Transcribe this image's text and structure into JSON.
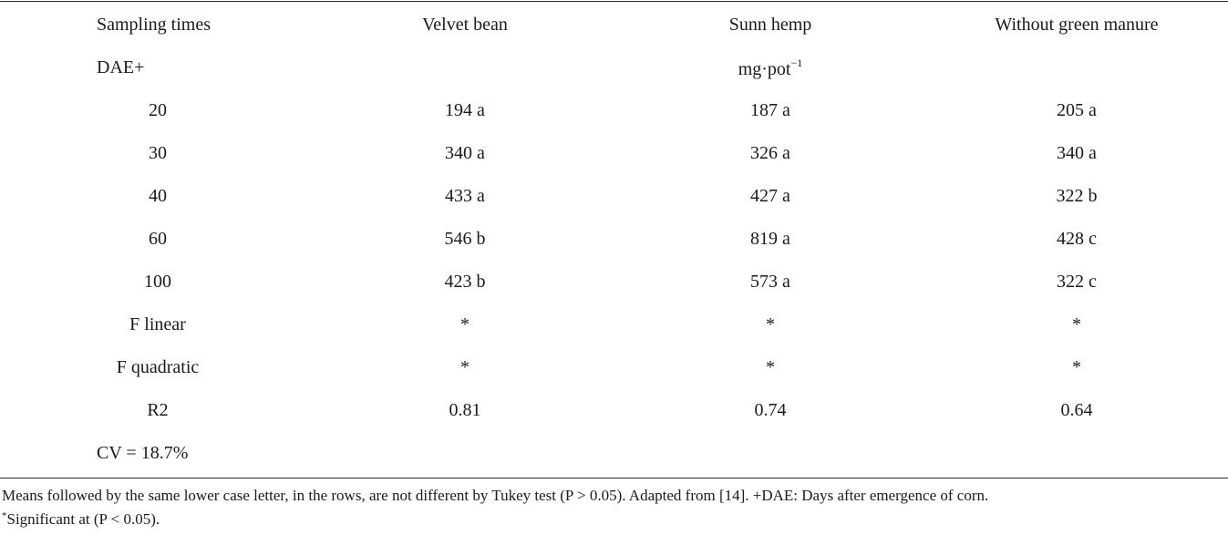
{
  "table": {
    "columns": [
      "Sampling times",
      "Velvet bean",
      "Sunn hemp",
      "Without green manure"
    ],
    "unit_row": {
      "label": "DAE+",
      "unit_base": "mg·pot",
      "unit_sup": "−1"
    },
    "rows": [
      {
        "label": "20",
        "velvet_bean": "194 a",
        "sunn_hemp": "187 a",
        "without_green_manure": "205 a"
      },
      {
        "label": "30",
        "velvet_bean": "340 a",
        "sunn_hemp": "326 a",
        "without_green_manure": "340 a"
      },
      {
        "label": "40",
        "velvet_bean": "433 a",
        "sunn_hemp": "427 a",
        "without_green_manure": "322 b"
      },
      {
        "label": "60",
        "velvet_bean": "546 b",
        "sunn_hemp": "819 a",
        "without_green_manure": "428 c"
      },
      {
        "label": "100",
        "velvet_bean": "423 b",
        "sunn_hemp": "573 a",
        "without_green_manure": "322 c"
      },
      {
        "label": "F linear",
        "velvet_bean": "*",
        "sunn_hemp": "*",
        "without_green_manure": "*"
      },
      {
        "label": "F quadratic",
        "velvet_bean": "*",
        "sunn_hemp": "*",
        "without_green_manure": "*"
      },
      {
        "label": "R2",
        "velvet_bean": "0.81",
        "sunn_hemp": "0.74",
        "without_green_manure": "0.64"
      }
    ],
    "cv_row": {
      "label": "CV = 18.7%"
    }
  },
  "footnote": {
    "line1": "Means followed by the same lower case letter, in the rows, are not different by Tukey test (P > 0.05). Adapted from [14]. +DAE: Days after emergence of corn.",
    "sig_marker": "*",
    "line2": "Significant at (P < 0.05)."
  }
}
